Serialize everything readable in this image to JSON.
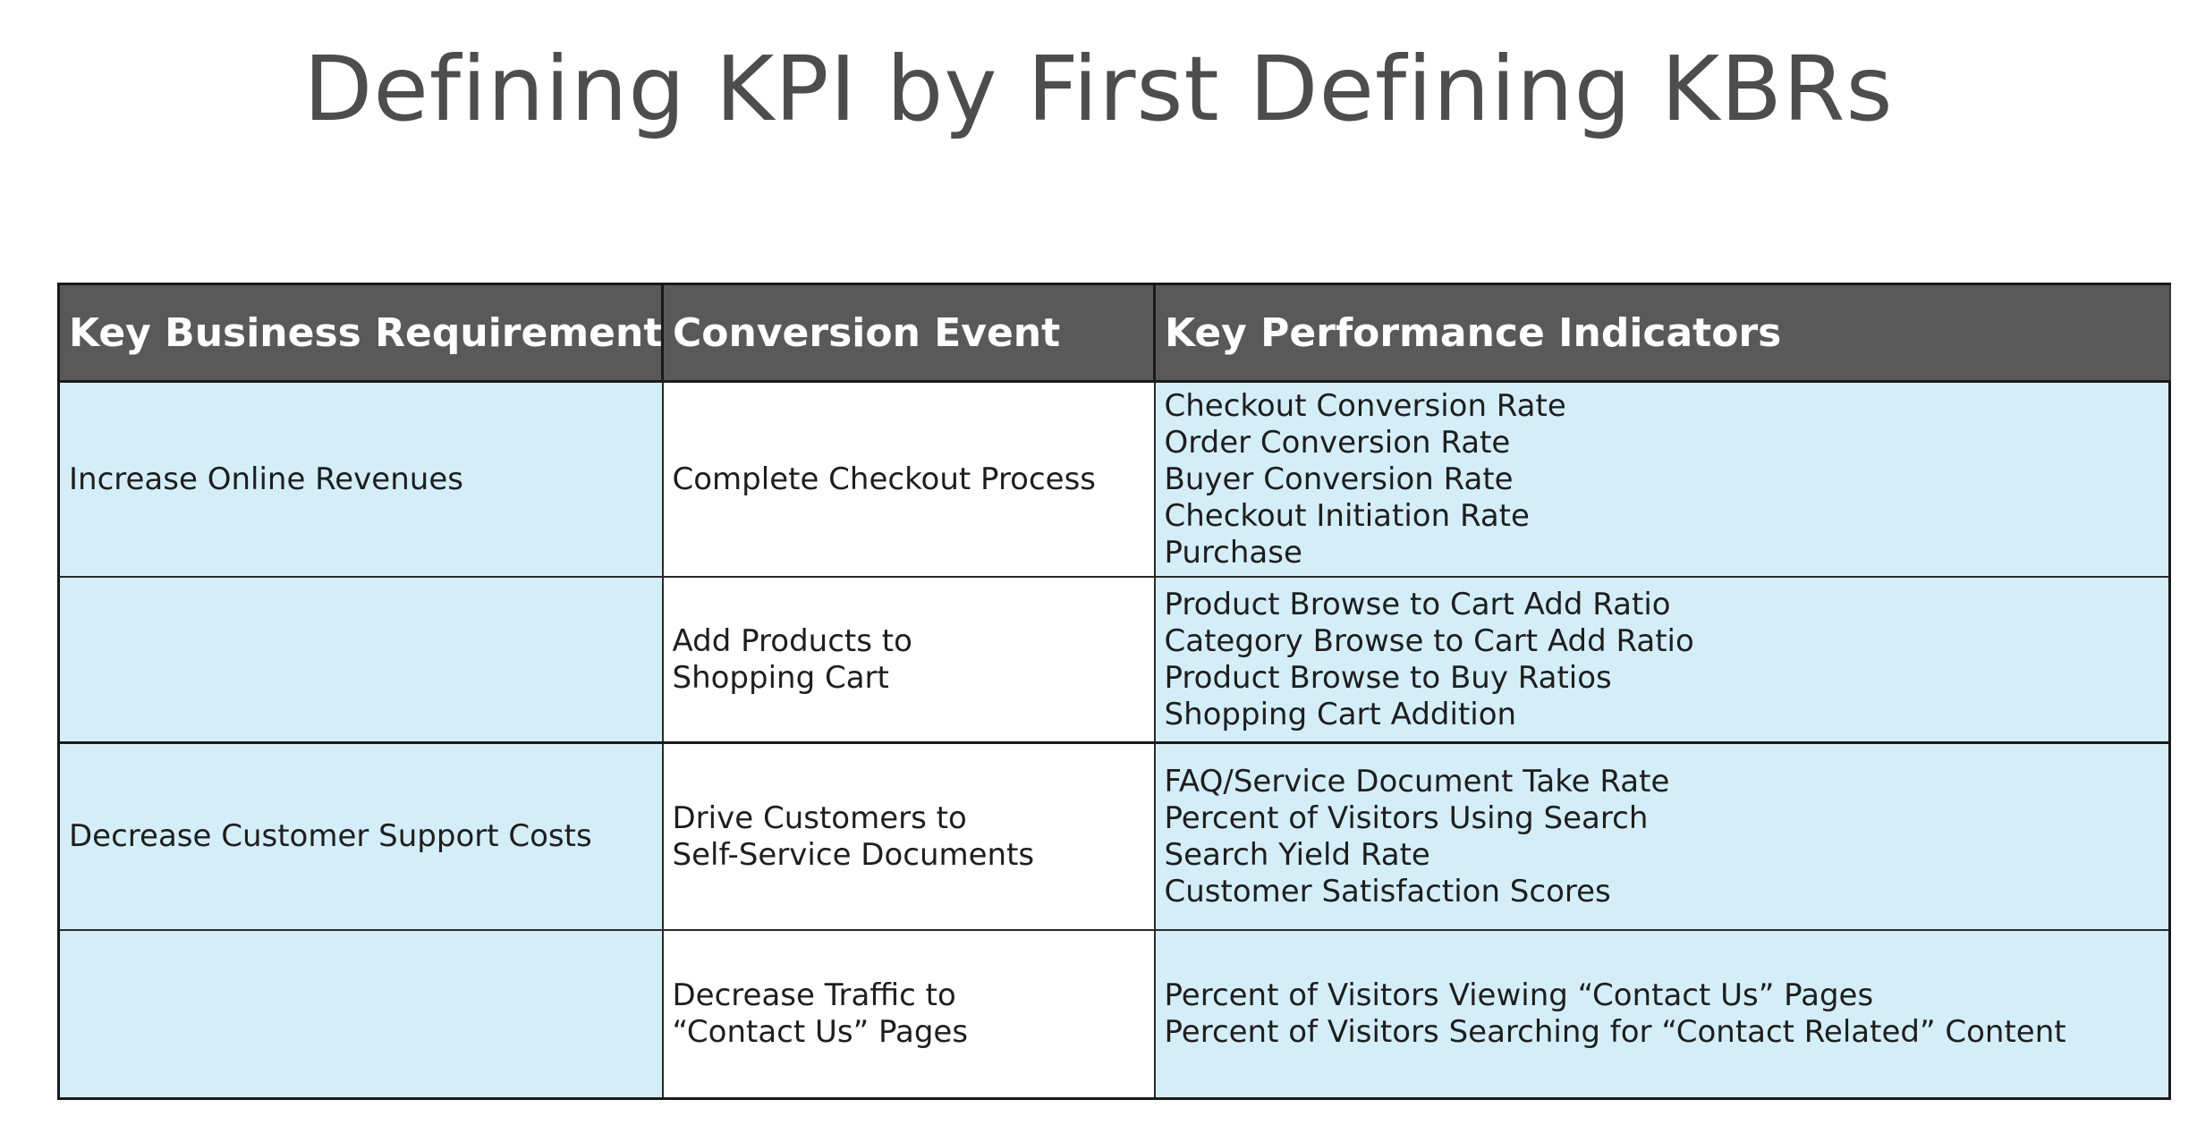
{
  "title": "Defining KPI by First Defining KBRs",
  "colors": {
    "header_bg": "#595959",
    "header_text": "#ffffff",
    "row_blue": "#d4eef9",
    "row_white": "#ffffff",
    "title_text": "#4d4d4d"
  },
  "table": {
    "headers": [
      "Key Business Requirement",
      "Conversion Event",
      "Key Performance Indicators"
    ],
    "rows": [
      {
        "requirement": "Increase Online Revenues",
        "event": [
          "Complete Checkout Process"
        ],
        "kpis": [
          "Checkout Conversion Rate",
          "Order Conversion Rate",
          "Buyer Conversion Rate",
          "Checkout Initiation Rate",
          "Purchase"
        ]
      },
      {
        "requirement": "",
        "event": [
          "Add Products to",
          "Shopping Cart"
        ],
        "kpis": [
          "Product Browse to Cart Add Ratio",
          "Category Browse to Cart Add Ratio",
          "Product Browse to Buy Ratios",
          "Shopping Cart Addition"
        ]
      },
      {
        "requirement": "Decrease Customer Support Costs",
        "event": [
          "Drive Customers to",
          "Self-Service Documents"
        ],
        "kpis": [
          "FAQ/Service Document Take Rate",
          "Percent of Visitors Using Search",
          "Search Yield Rate",
          "Customer Satisfaction Scores"
        ]
      },
      {
        "requirement": "",
        "event": [
          "Decrease Traffic to",
          "“Contact Us” Pages"
        ],
        "kpis": [
          "Percent of Visitors Viewing “Contact Us” Pages",
          "Percent of Visitors Searching for “Contact Related” Content"
        ]
      }
    ]
  }
}
